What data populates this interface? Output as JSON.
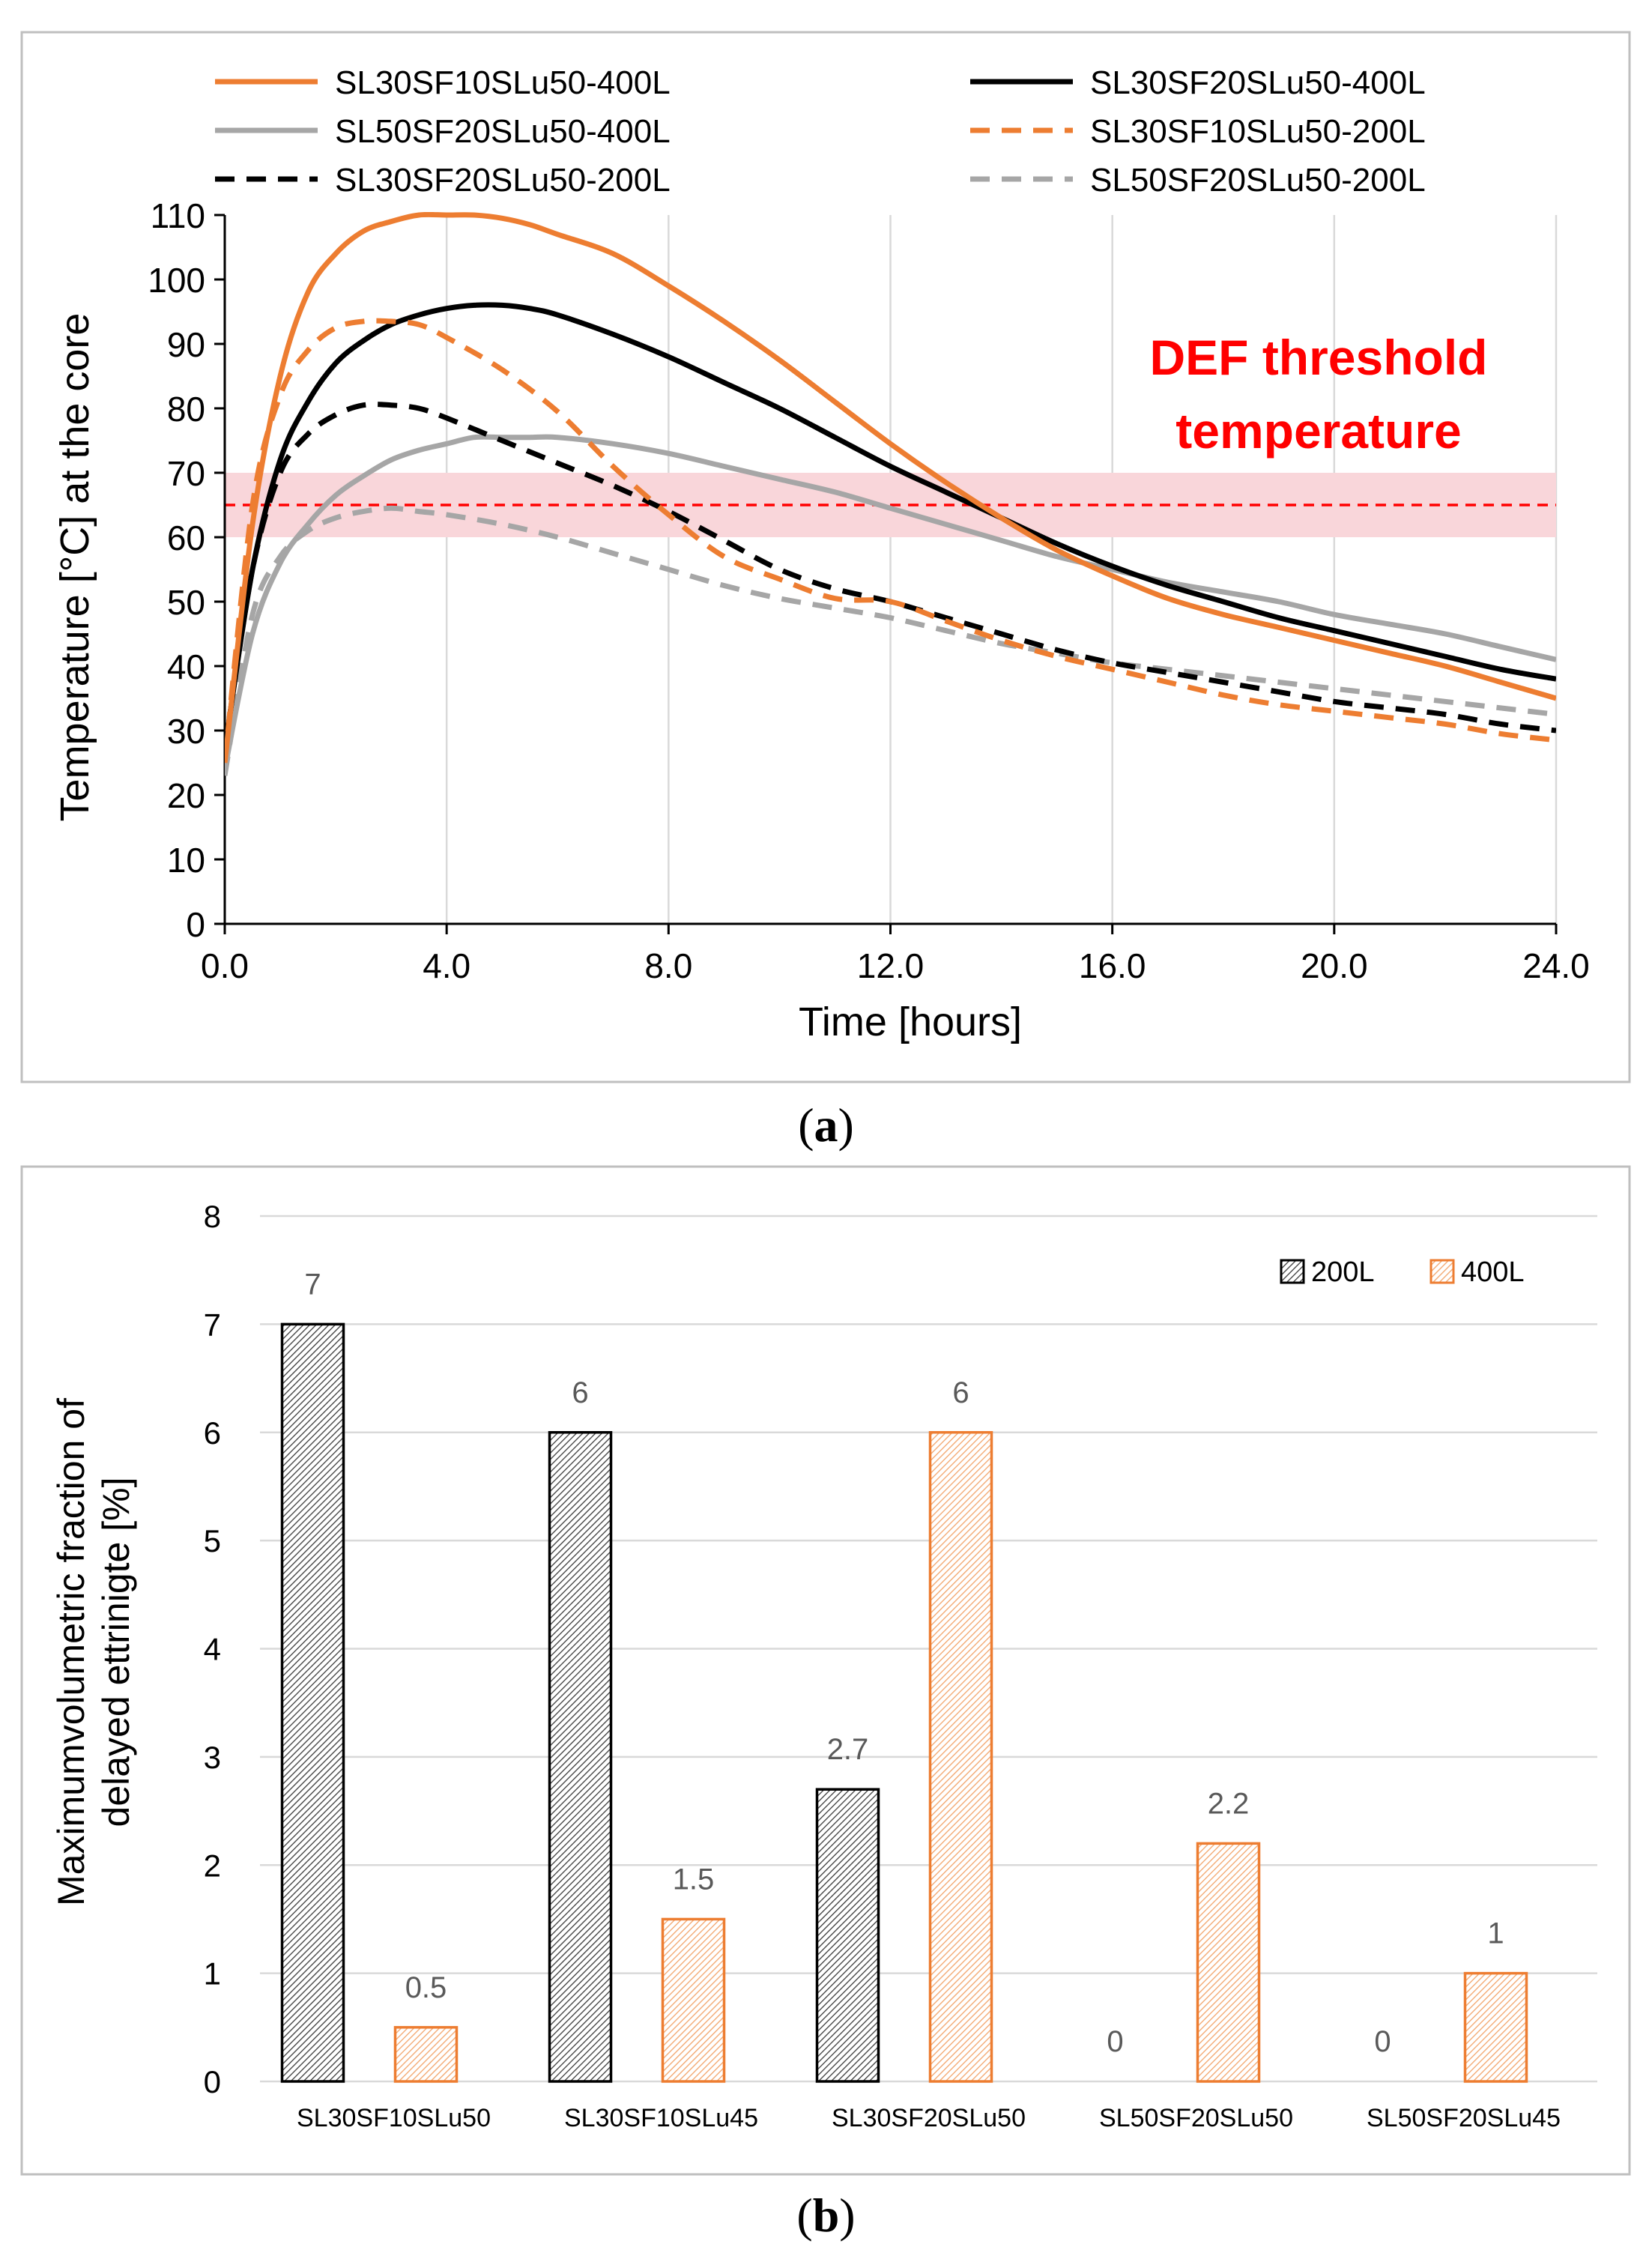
{
  "panel_a_label": "a",
  "panel_b_label": "b",
  "chart_data": [
    {
      "type": "line",
      "xlabel": "Time [hours]",
      "ylabel": "Temperature [°C] at the core",
      "xlim": [
        0,
        24
      ],
      "ylim": [
        0,
        110
      ],
      "xticks": [
        "0.0",
        "4.0",
        "8.0",
        "12.0",
        "16.0",
        "20.0",
        "24.0"
      ],
      "yticks": [
        "0",
        "10",
        "20",
        "30",
        "40",
        "50",
        "60",
        "70",
        "80",
        "90",
        "100",
        "110"
      ],
      "grid": "vertical",
      "legend_position": "top",
      "annotation": {
        "line1": "DEF threshold",
        "line2": "temperature",
        "color": "#ff0000"
      },
      "threshold": {
        "value": 65,
        "band": [
          60,
          70
        ],
        "color": "#ff0000",
        "band_color": "#f9d6da"
      },
      "series": [
        {
          "name": "SL30SF10SLu50-400L",
          "color": "#ed7d31",
          "dash": "solid",
          "x": [
            0,
            0.5,
            1,
            1.5,
            2,
            2.5,
            3,
            3.5,
            4,
            4.5,
            5,
            5.5,
            6,
            7,
            8,
            9,
            10,
            11,
            12,
            13,
            14,
            15,
            16,
            17,
            18,
            19,
            20,
            21,
            22,
            23,
            24
          ],
          "y": [
            25,
            62,
            85,
            98,
            104,
            107.5,
            109,
            110,
            110,
            110,
            109.5,
            108.5,
            107,
            104,
            99,
            93.5,
            87.5,
            81,
            74.5,
            68.5,
            63,
            58,
            54,
            50.5,
            48,
            46,
            44,
            42,
            40,
            37.5,
            35
          ]
        },
        {
          "name": "SL30SF20SLu50-400L",
          "color": "#000000",
          "dash": "solid",
          "x": [
            0,
            0.5,
            1,
            1.5,
            2,
            2.5,
            3,
            3.5,
            4,
            4.5,
            5,
            5.5,
            6,
            7,
            8,
            9,
            10,
            11,
            12,
            13,
            14,
            15,
            16,
            17,
            18,
            19,
            20,
            21,
            22,
            23,
            24
          ],
          "y": [
            27,
            55,
            72,
            81,
            87,
            90.5,
            93,
            94.5,
            95.5,
            96,
            96,
            95.5,
            94.5,
            91.5,
            88,
            84,
            80,
            75.5,
            71,
            67,
            63,
            59,
            55.5,
            52.5,
            50,
            47.5,
            45.5,
            43.5,
            41.5,
            39.5,
            38
          ]
        },
        {
          "name": "SL50SF20SLu50-400L",
          "color": "#a6a6a6",
          "dash": "solid",
          "x": [
            0,
            0.5,
            1,
            1.5,
            2,
            2.5,
            3,
            3.5,
            4,
            4.5,
            5,
            5.5,
            6,
            7,
            8,
            9,
            10,
            11,
            12,
            13,
            14,
            15,
            16,
            17,
            18,
            19,
            20,
            21,
            22,
            23,
            24
          ],
          "y": [
            24,
            45,
            56,
            62,
            66.5,
            69.5,
            72,
            73.5,
            74.5,
            75.5,
            75.5,
            75.5,
            75.5,
            74.5,
            73,
            71,
            69,
            67,
            64.5,
            62,
            59.5,
            57,
            55,
            53,
            51.5,
            50,
            48,
            46.5,
            45,
            43,
            41
          ]
        },
        {
          "name": "SL30SF10SLu50-200L",
          "color": "#ed7d31",
          "dash": "dashed",
          "x": [
            0,
            0.5,
            1,
            1.5,
            2,
            2.5,
            3,
            3.5,
            4,
            5,
            6,
            7,
            8,
            9,
            10,
            11,
            12,
            13,
            14,
            15,
            16,
            17,
            18,
            19,
            20,
            21,
            22,
            23,
            24
          ],
          "y": [
            25,
            65,
            82,
            89,
            92.5,
            93.5,
            93.5,
            93,
            91,
            86,
            79.5,
            71,
            63.5,
            57,
            53.5,
            50.5,
            50,
            47,
            44,
            41.5,
            39.5,
            37.5,
            35.5,
            34,
            33,
            32,
            31,
            29.5,
            28.5
          ]
        },
        {
          "name": "SL30SF20SLu50-200L",
          "color": "#000000",
          "dash": "dashed",
          "x": [
            0,
            0.5,
            1,
            1.5,
            2,
            2.5,
            3,
            3.5,
            4,
            5,
            6,
            7,
            8,
            9,
            10,
            11,
            12,
            13,
            14,
            15,
            16,
            17,
            18,
            19,
            20,
            21,
            22,
            23,
            24
          ],
          "y": [
            27,
            55,
            70,
            76,
            79,
            80.5,
            80.5,
            80,
            78.5,
            75,
            71.5,
            68,
            64,
            59.5,
            55,
            52,
            50,
            47.5,
            45,
            42.5,
            40.5,
            39,
            37.5,
            36,
            34.5,
            33.5,
            32.5,
            31,
            30
          ]
        },
        {
          "name": "SL50SF20SLu50-200L",
          "color": "#a6a6a6",
          "dash": "dashed",
          "x": [
            0,
            0.5,
            1,
            1.5,
            2,
            2.5,
            3,
            3.5,
            4,
            5,
            6,
            7,
            8,
            9,
            10,
            11,
            12,
            13,
            14,
            15,
            16,
            17,
            18,
            19,
            20,
            21,
            22,
            23,
            24
          ],
          "y": [
            23,
            48,
            57,
            61,
            63,
            64,
            64.5,
            64,
            63.5,
            62,
            60,
            57.5,
            55,
            52.5,
            50.5,
            49,
            47.5,
            45.5,
            43.5,
            42,
            40.5,
            39.5,
            38.5,
            37.5,
            36.5,
            35.5,
            34.5,
            33.5,
            32.5
          ]
        }
      ]
    },
    {
      "type": "bar",
      "ylabel_lines": [
        "Maximumvolumetric fraction of",
        "delayed ettrinigte [%]"
      ],
      "ylim": [
        0,
        8
      ],
      "yticks": [
        "0",
        "1",
        "2",
        "3",
        "4",
        "5",
        "6",
        "7",
        "8"
      ],
      "grid": "horizontal",
      "legend_position": "top-right",
      "categories": [
        "SL30SF10SLu50",
        "SL30SF10SLu45",
        "SL30SF20SLu50",
        "SL50SF20SLu50",
        "SL50SF20SLu45"
      ],
      "series": [
        {
          "name": "200L",
          "color": "#000000",
          "values": [
            7,
            6,
            2.7,
            0,
            0
          ],
          "labels": [
            "7",
            "6",
            "2.7",
            "0",
            "0"
          ]
        },
        {
          "name": "400L",
          "color": "#ed7d31",
          "values": [
            0.5,
            1.5,
            6,
            2.2,
            1
          ],
          "labels": [
            "0.5",
            "1.5",
            "6",
            "2.2",
            "1"
          ]
        }
      ]
    }
  ]
}
